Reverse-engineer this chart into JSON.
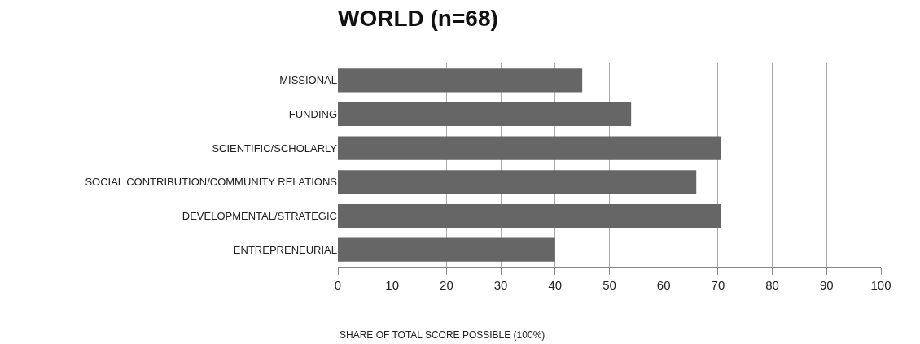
{
  "chart_data": {
    "type": "bar",
    "orientation": "horizontal",
    "title": "WORLD (n=68)",
    "xlabel": "SHARE OF TOTAL SCORE POSSIBLE (100%)",
    "categories": [
      "MISSIONAL",
      "FUNDING",
      "SCIENTIFIC/SCHOLARLY",
      "SOCIAL CONTRIBUTION/COMMUNITY RELATIONS",
      "DEVELOPMENTAL/STRATEGIC",
      "ENTREPRENEURIAL"
    ],
    "values": [
      45,
      54,
      70.5,
      66,
      70.5,
      40
    ],
    "color": "#666666",
    "xlim": [
      0,
      100
    ],
    "xticks": [
      0,
      10,
      20,
      30,
      40,
      50,
      60,
      70,
      80,
      90,
      100
    ],
    "grid": "x"
  }
}
